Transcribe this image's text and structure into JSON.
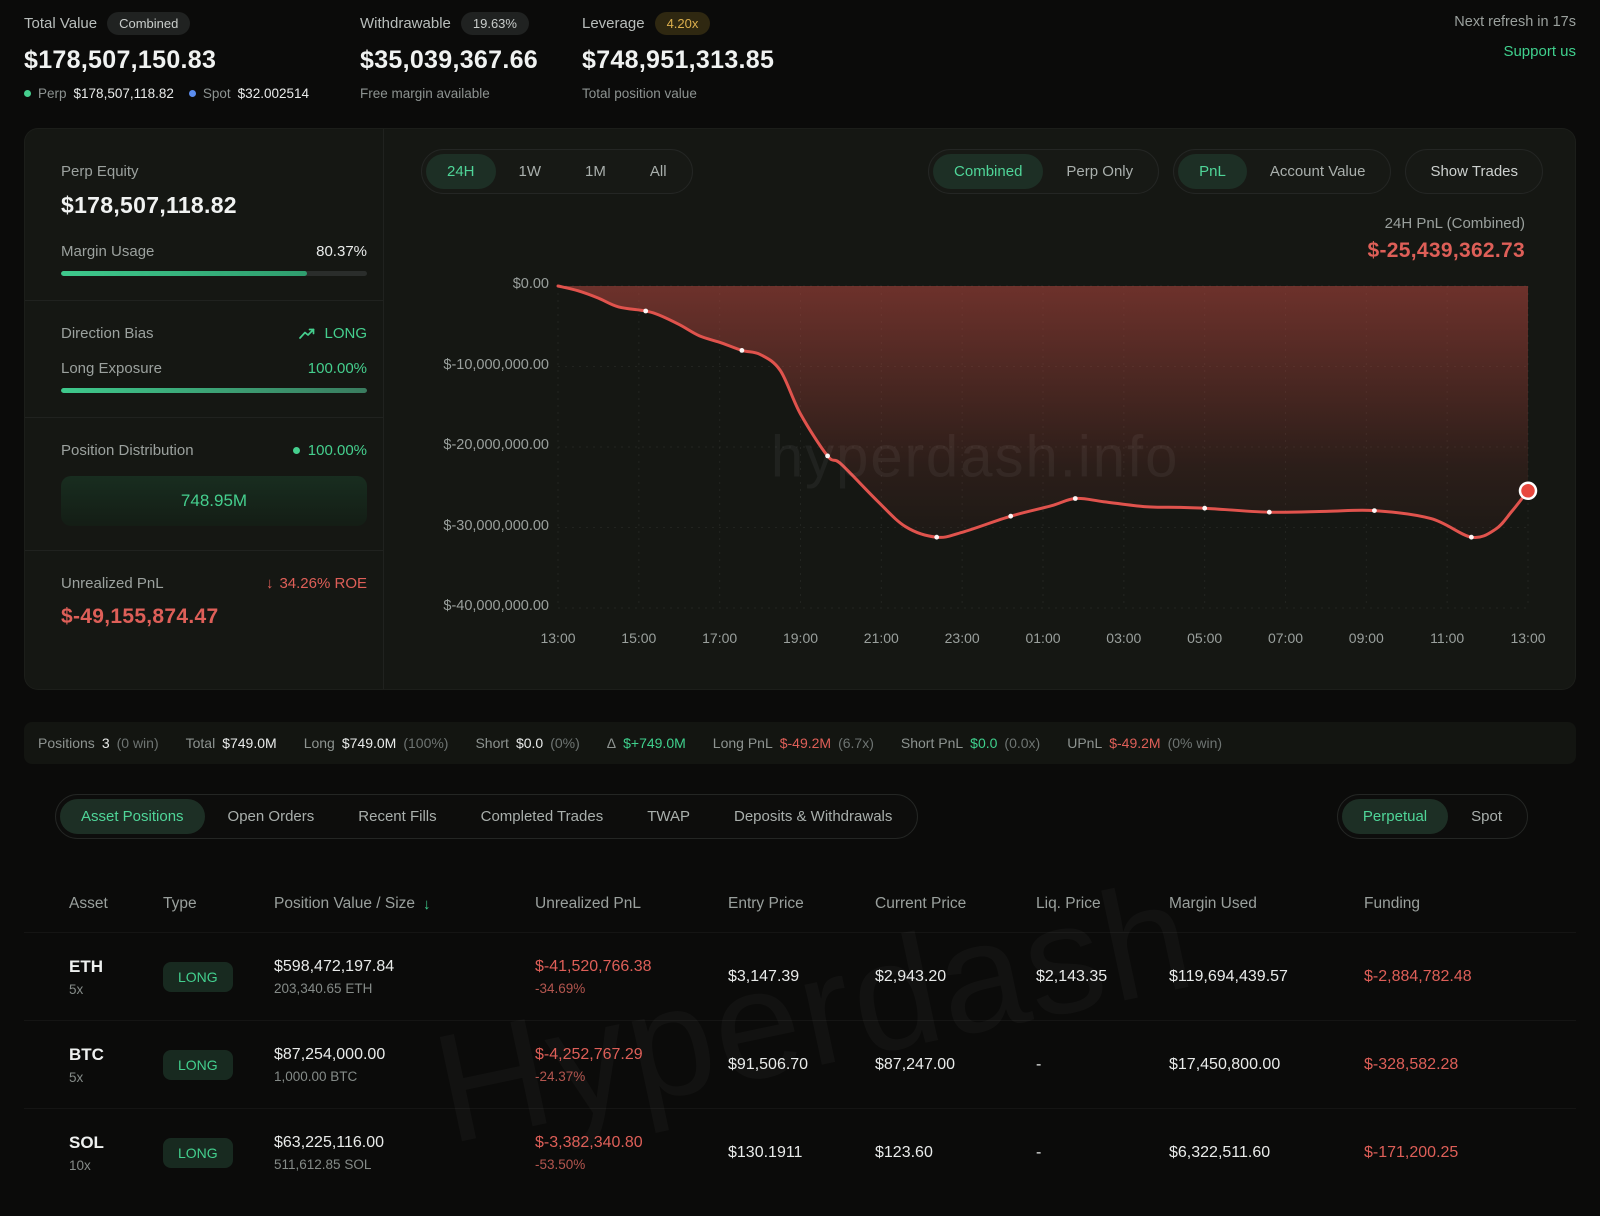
{
  "topbar": {
    "stats": [
      {
        "label": "Total Value",
        "badge": "Combined",
        "value": "$178,507,150.83",
        "perp_label": "Perp",
        "perp_value": "$178,507,118.82",
        "spot_label": "Spot",
        "spot_value": "$32.002514"
      },
      {
        "label": "Withdrawable",
        "badge": "19.63%",
        "value": "$35,039,367.66",
        "sub": "Free margin available"
      },
      {
        "label": "Leverage",
        "badge": "4.20x",
        "value": "$748,951,313.85",
        "sub": "Total position value"
      }
    ],
    "refresh_text": "Next refresh in 17s",
    "support_text": "Support us"
  },
  "panel": {
    "perp_equity_label": "Perp Equity",
    "perp_equity_value": "$178,507,118.82",
    "margin_usage_label": "Margin Usage",
    "margin_usage_value": "80.37%",
    "margin_usage_pct": 80.37,
    "direction_bias_label": "Direction Bias",
    "direction_bias_value": "LONG",
    "long_exposure_label": "Long Exposure",
    "long_exposure_value": "100.00%",
    "long_exposure_pct": 100,
    "position_distribution_label": "Position Distribution",
    "position_distribution_pct": "100.00%",
    "position_distribution_box": "748.95M",
    "unrealized_pnl_label": "Unrealized PnL",
    "unrealized_roe": "34.26% ROE",
    "unrealized_roe_arrow": "↓",
    "unrealized_pnl_value": "$-49,155,874.47"
  },
  "controls": {
    "time_ranges": [
      "24H",
      "1W",
      "1M",
      "All"
    ],
    "active_time_range": "24H",
    "scope_options": [
      "Combined",
      "Perp Only"
    ],
    "active_scope": "Combined",
    "metric_options": [
      "PnL",
      "Account Value"
    ],
    "active_metric": "PnL",
    "show_trades_label": "Show Trades",
    "pnl_label": "24H PnL (Combined)",
    "pnl_value": "$-25,439,362.73"
  },
  "chart_data": {
    "type": "area",
    "title": "24H PnL (Combined)",
    "x_hours": [
      0,
      0.5,
      1,
      1.5,
      2.17,
      2.5,
      3,
      3.5,
      4,
      4.55,
      5,
      5.5,
      6,
      6.67,
      7,
      7.9,
      8.6,
      9.37,
      10,
      11.2,
      12.2,
      12.8,
      13.5,
      14.5,
      15.4,
      16,
      17.6,
      19,
      20.2,
      21.6,
      22.6,
      23.2,
      23.6,
      24
    ],
    "values": [
      0,
      -600000,
      -1500000,
      -2600000,
      -3100000,
      -3600000,
      -4800000,
      -6200000,
      -7000000,
      -8000000,
      -8500000,
      -10500000,
      -15900000,
      -21100000,
      -22100000,
      -26700000,
      -29900000,
      -31200000,
      -30600000,
      -28600000,
      -27300000,
      -26400000,
      -26800000,
      -27400000,
      -27500000,
      -27600000,
      -28100000,
      -28000000,
      -27900000,
      -28900000,
      -31200000,
      -30200000,
      -28000000,
      -25439362.73
    ],
    "dot_hours": [
      2.17,
      4.55,
      6.67,
      9.37,
      11.2,
      12.8,
      16,
      17.6,
      20.2,
      22.6
    ],
    "end_dot": {
      "hour": 24,
      "value": -25439362.73
    },
    "x_tick_labels": [
      "13:00",
      "15:00",
      "17:00",
      "19:00",
      "21:00",
      "23:00",
      "01:00",
      "03:00",
      "05:00",
      "07:00",
      "09:00",
      "11:00",
      "13:00"
    ],
    "y_tick_labels": [
      "$0.00",
      "$-10,000,000.00",
      "$-20,000,000.00",
      "$-30,000,000.00",
      "$-40,000,000.00"
    ],
    "ylim": [
      -40000000,
      0
    ],
    "xlim_hours": [
      0,
      24
    ],
    "grid": true,
    "line_color": "#e0534d",
    "fill_color": "#b5473f",
    "watermark": "hyperdash.info"
  },
  "summary": {
    "items": [
      {
        "label": "Positions",
        "value": "3",
        "extra": "(0 win)",
        "color": "white"
      },
      {
        "label": "Total",
        "value": "$749.0M",
        "color": "white"
      },
      {
        "label": "Long",
        "value": "$749.0M",
        "extra": "(100%)",
        "color": "white"
      },
      {
        "label": "Short",
        "value": "$0.0",
        "extra": "(0%)",
        "color": "white"
      },
      {
        "label": "Δ",
        "value": "$+749.0M",
        "color": "green"
      },
      {
        "label": "Long PnL",
        "value": "$-49.2M",
        "extra": "(6.7x)",
        "color": "red"
      },
      {
        "label": "Short PnL",
        "value": "$0.0",
        "extra": "(0.0x)",
        "color": "green"
      },
      {
        "label": "UPnL",
        "value": "$-49.2M",
        "extra": "(0% win)",
        "color": "red"
      }
    ]
  },
  "tabs": {
    "items": [
      "Asset Positions",
      "Open Orders",
      "Recent Fills",
      "Completed Trades",
      "TWAP",
      "Deposits & Withdrawals"
    ],
    "active": "Asset Positions",
    "market_options": [
      "Perpetual",
      "Spot"
    ],
    "active_market": "Perpetual"
  },
  "table": {
    "columns": [
      "Asset",
      "Type",
      "Position Value / Size",
      "Unrealized PnL",
      "Entry Price",
      "Current Price",
      "Liq. Price",
      "Margin Used",
      "Funding"
    ],
    "sorted_column": "Position Value / Size",
    "sort_icon": "↓",
    "rows": [
      {
        "asset": "ETH",
        "leverage": "5x",
        "type": "LONG",
        "position_value": "$598,472,197.84",
        "size": "203,340.65 ETH",
        "upnl": "$-41,520,766.38",
        "upnl_pct": "-34.69%",
        "entry": "$3,147.39",
        "current": "$2,943.20",
        "liq": "$2,143.35",
        "margin": "$119,694,439.57",
        "funding": "$-2,884,782.48"
      },
      {
        "asset": "BTC",
        "leverage": "5x",
        "type": "LONG",
        "position_value": "$87,254,000.00",
        "size": "1,000.00 BTC",
        "upnl": "$-4,252,767.29",
        "upnl_pct": "-24.37%",
        "entry": "$91,506.70",
        "current": "$87,247.00",
        "liq": "-",
        "margin": "$17,450,800.00",
        "funding": "$-328,582.28"
      },
      {
        "asset": "SOL",
        "leverage": "10x",
        "type": "LONG",
        "position_value": "$63,225,116.00",
        "size": "511,612.85 SOL",
        "upnl": "$-3,382,340.80",
        "upnl_pct": "-53.50%",
        "entry": "$130.1911",
        "current": "$123.60",
        "liq": "-",
        "margin": "$6,322,511.60",
        "funding": "$-171,200.25"
      }
    ],
    "watermark": "Hyperdash"
  },
  "colors": {
    "green": "#45cf8e",
    "red": "#de5f58",
    "gold": "#ddb04e",
    "line": "#e0534d"
  }
}
